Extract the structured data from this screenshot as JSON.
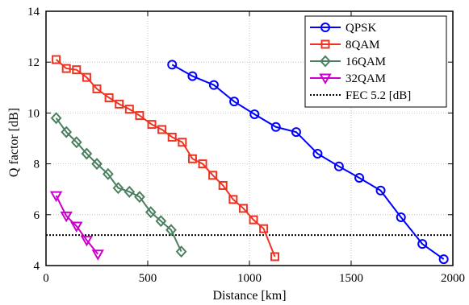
{
  "chart_data": {
    "type": "line",
    "xlabel": "Distance [km]",
    "ylabel": "Q factor [dB]",
    "xlim": [
      0,
      2000
    ],
    "ylim": [
      4,
      14
    ],
    "xticks": [
      0,
      500,
      1000,
      1500,
      2000
    ],
    "yticks": [
      4,
      6,
      8,
      10,
      12,
      14
    ],
    "grid": true,
    "legend_position": "top-right",
    "series": [
      {
        "name": "QPSK",
        "color": "#0000ff",
        "marker": "circle",
        "x": [
          620,
          720,
          825,
          925,
          1025,
          1130,
          1230,
          1335,
          1440,
          1540,
          1645,
          1745,
          1850,
          1955
        ],
        "y": [
          11.9,
          11.45,
          11.1,
          10.45,
          9.95,
          9.45,
          9.25,
          8.4,
          7.9,
          7.45,
          6.95,
          5.9,
          4.85,
          4.25
        ]
      },
      {
        "name": "8QAM",
        "color": "#ee3322",
        "marker": "square",
        "x": [
          50,
          100,
          150,
          200,
          250,
          310,
          360,
          410,
          460,
          520,
          570,
          620,
          670,
          720,
          770,
          820,
          870,
          920,
          970,
          1020,
          1070,
          1125
        ],
        "y": [
          12.1,
          11.75,
          11.7,
          11.4,
          10.95,
          10.6,
          10.35,
          10.15,
          9.9,
          9.55,
          9.35,
          9.05,
          8.85,
          8.2,
          8.0,
          7.55,
          7.15,
          6.6,
          6.25,
          5.8,
          5.45,
          4.35
        ]
      },
      {
        "name": "16QAM",
        "color": "#4a7f5f",
        "marker": "diamond",
        "x": [
          50,
          100,
          150,
          200,
          250,
          305,
          355,
          410,
          460,
          515,
          565,
          615,
          665
        ],
        "y": [
          9.8,
          9.25,
          8.85,
          8.4,
          8.0,
          7.6,
          7.05,
          6.9,
          6.7,
          6.1,
          5.75,
          5.4,
          4.55
        ]
      },
      {
        "name": "32QAM",
        "color": "#cc00cc",
        "marker": "triangle-down",
        "x": [
          50,
          100,
          150,
          200,
          255
        ],
        "y": [
          6.75,
          5.95,
          5.55,
          5.0,
          4.45
        ]
      }
    ],
    "reference_lines": [
      {
        "name": "FEC 5.2 [dB]",
        "y": 5.2,
        "color": "#000000",
        "style": "dotted"
      }
    ]
  }
}
